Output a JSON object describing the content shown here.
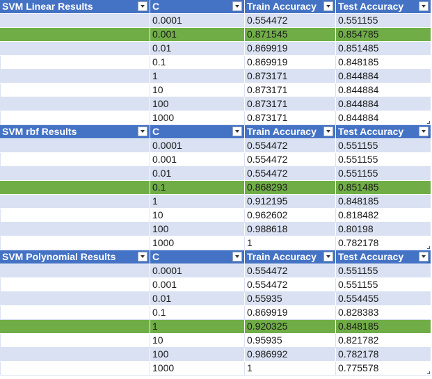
{
  "tables": [
    {
      "title": "SVM Linear Results",
      "headers": [
        "C",
        "Train Accuracy",
        "Test Accuracy"
      ],
      "rows": [
        {
          "c": "0.0001",
          "train": "0.554472",
          "test": "0.551155",
          "highlight": false
        },
        {
          "c": "0.001",
          "train": "0.871545",
          "test": "0.854785",
          "highlight": true
        },
        {
          "c": "0.01",
          "train": "0.869919",
          "test": "0.851485",
          "highlight": false
        },
        {
          "c": "0.1",
          "train": "0.869919",
          "test": "0.848185",
          "highlight": false
        },
        {
          "c": "1",
          "train": "0.873171",
          "test": "0.844884",
          "highlight": false
        },
        {
          "c": "10",
          "train": "0.873171",
          "test": "0.844884",
          "highlight": false
        },
        {
          "c": "100",
          "train": "0.873171",
          "test": "0.844884",
          "highlight": false
        },
        {
          "c": "1000",
          "train": "0.873171",
          "test": "0.844884",
          "highlight": false
        }
      ]
    },
    {
      "title": "SVM rbf Results",
      "headers": [
        "C",
        "Train Accuracy",
        "Test Accuracy"
      ],
      "rows": [
        {
          "c": "0.0001",
          "train": "0.554472",
          "test": "0.551155",
          "highlight": false
        },
        {
          "c": "0.001",
          "train": "0.554472",
          "test": "0.551155",
          "highlight": false
        },
        {
          "c": "0.01",
          "train": "0.554472",
          "test": "0.551155",
          "highlight": false
        },
        {
          "c": "0.1",
          "train": "0.868293",
          "test": "0.851485",
          "highlight": true
        },
        {
          "c": "1",
          "train": "0.912195",
          "test": "0.848185",
          "highlight": false
        },
        {
          "c": "10",
          "train": "0.962602",
          "test": "0.818482",
          "highlight": false
        },
        {
          "c": "100",
          "train": "0.988618",
          "test": "0.80198",
          "highlight": false
        },
        {
          "c": "1000",
          "train": "1",
          "test": "0.782178",
          "highlight": false
        }
      ]
    },
    {
      "title": "SVM Polynomial Results",
      "headers": [
        "C",
        "Train Accuracy",
        "Test Accuracy"
      ],
      "rows": [
        {
          "c": "0.0001",
          "train": "0.554472",
          "test": "0.551155",
          "highlight": false
        },
        {
          "c": "0.001",
          "train": "0.554472",
          "test": "0.551155",
          "highlight": false
        },
        {
          "c": "0.01",
          "train": "0.55935",
          "test": "0.554455",
          "highlight": false
        },
        {
          "c": "0.1",
          "train": "0.869919",
          "test": "0.828383",
          "highlight": false
        },
        {
          "c": "1",
          "train": "0.920325",
          "test": "0.848185",
          "highlight": true
        },
        {
          "c": "10",
          "train": "0.95935",
          "test": "0.821782",
          "highlight": false
        },
        {
          "c": "100",
          "train": "0.986992",
          "test": "0.782178",
          "highlight": false
        },
        {
          "c": "1000",
          "train": "1",
          "test": "0.775578",
          "highlight": false
        }
      ]
    }
  ],
  "colors": {
    "header_bg": "#4472c4",
    "band_bg": "#d9e1f2",
    "highlight_bg": "#70ad47"
  },
  "icons": {
    "filter": "filter-dropdown-icon"
  }
}
